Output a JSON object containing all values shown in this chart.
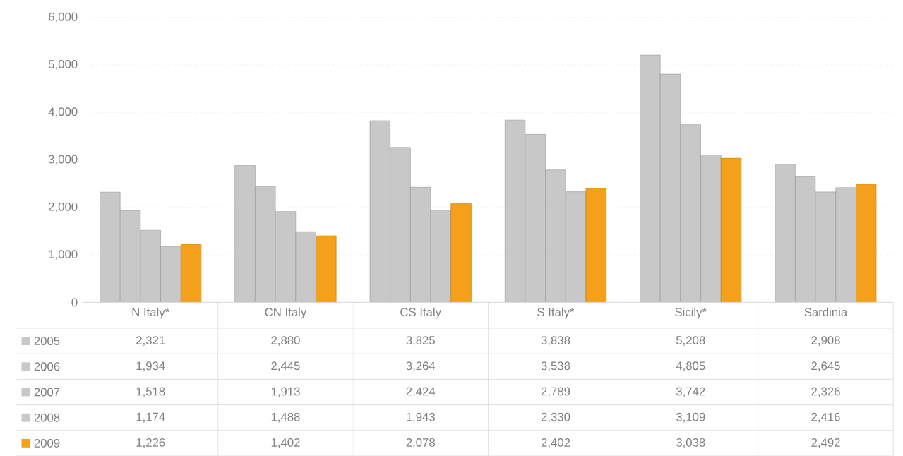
{
  "chart_data": {
    "type": "bar",
    "categories": [
      "N Italy*",
      "CN Italy",
      "CS Italy",
      "S Italy*",
      "Sicily*",
      "Sardinia"
    ],
    "series": [
      {
        "name": "2005",
        "color": "#c8c8c8",
        "values": [
          2321,
          2880,
          3825,
          3838,
          5208,
          2908
        ],
        "value_labels": [
          "2,321",
          "2,880",
          "3,825",
          "3,838",
          "5,208",
          "2,908"
        ]
      },
      {
        "name": "2006",
        "color": "#c8c8c8",
        "values": [
          1934,
          2445,
          3264,
          3538,
          4805,
          2645
        ],
        "value_labels": [
          "1,934",
          "2,445",
          "3,264",
          "3,538",
          "4,805",
          "2,645"
        ]
      },
      {
        "name": "2007",
        "color": "#c8c8c8",
        "values": [
          1518,
          1913,
          2424,
          2789,
          3742,
          2326
        ],
        "value_labels": [
          "1,518",
          "1,913",
          "2,424",
          "2,789",
          "3,742",
          "2,326"
        ]
      },
      {
        "name": "2008",
        "color": "#c8c8c8",
        "values": [
          1174,
          1488,
          1943,
          2330,
          3109,
          2416
        ],
        "value_labels": [
          "1,174",
          "1,488",
          "1,943",
          "2,330",
          "3,109",
          "2,416"
        ]
      },
      {
        "name": "2009",
        "color": "#f5a01a",
        "values": [
          1226,
          1402,
          2078,
          2402,
          3038,
          2492
        ],
        "value_labels": [
          "1,226",
          "1,402",
          "2,078",
          "2,402",
          "3,038",
          "2,492"
        ]
      }
    ],
    "ylim": [
      0,
      6000
    ],
    "yticks": [
      0,
      {
        "value": 1000,
        "label": "1,000"
      },
      {
        "value": 2000,
        "label": "2,000"
      },
      {
        "value": 3000,
        "label": "3,000"
      },
      {
        "value": 4000,
        "label": "4,000"
      },
      {
        "value": 5000,
        "label": "5,000"
      },
      {
        "value": 6000,
        "label": "6,000"
      }
    ],
    "grid": "y",
    "legend": "bottom"
  }
}
